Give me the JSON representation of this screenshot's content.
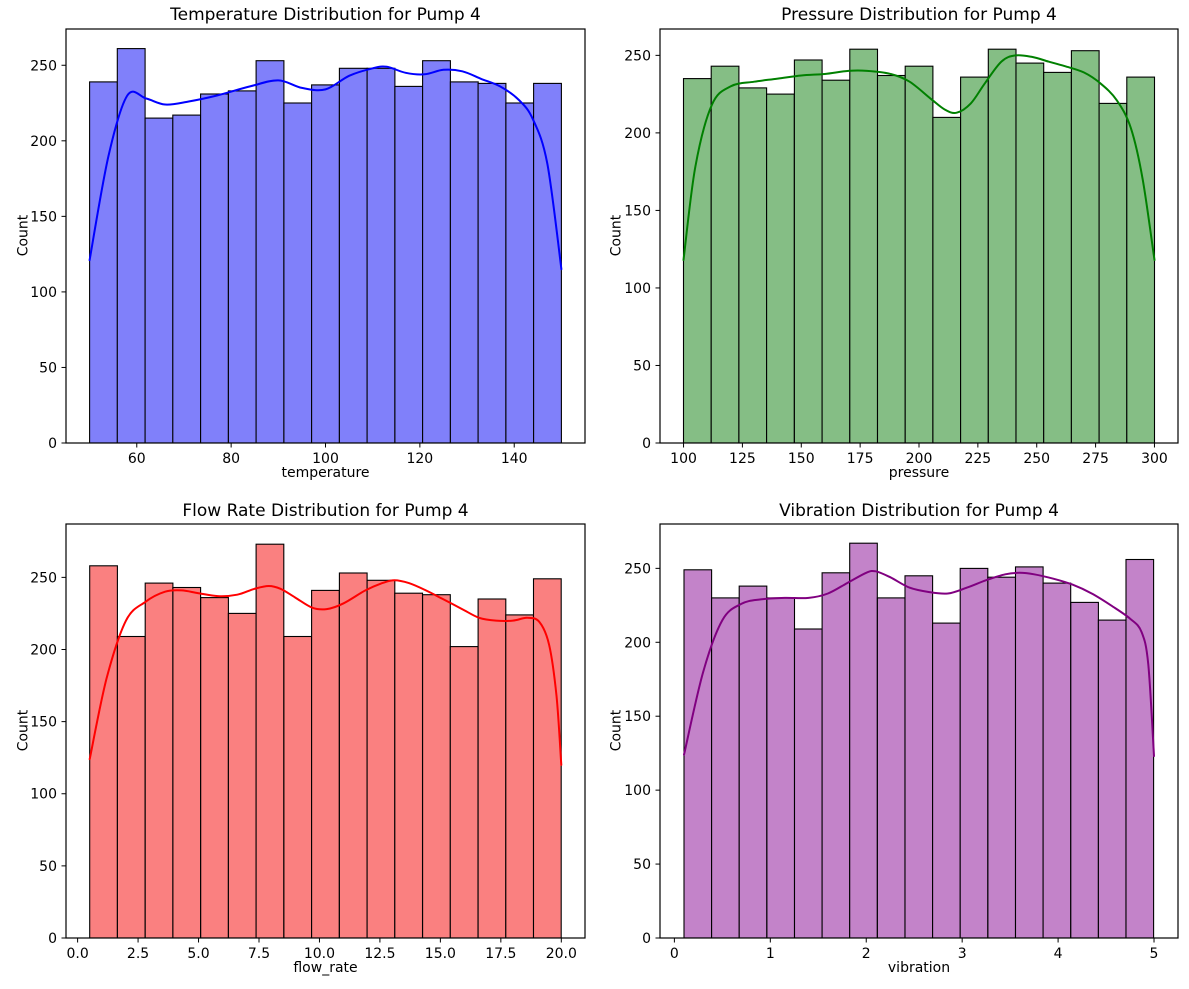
{
  "figure": {
    "background": "#ffffff",
    "text_color": "#000000",
    "axes_edge_color": "#000000"
  },
  "chart_data": [
    {
      "id": "temperature",
      "type": "bar",
      "subtype": "histogram_with_kde",
      "title": "Temperature Distribution for Pump 4",
      "xlabel": "temperature",
      "ylabel": "Count",
      "bar_color": "#8080fa",
      "bar_edge_color": "#000000",
      "kde_color": "#0000ff",
      "bin_start": 50.0,
      "bin_width": 5.882,
      "values": [
        239,
        261,
        215,
        217,
        231,
        233,
        253,
        225,
        237,
        248,
        248,
        236,
        253,
        239,
        238,
        225,
        238
      ],
      "xlim": [
        45,
        155
      ],
      "ylim": [
        0,
        274
      ],
      "grid": false,
      "xticks": {
        "values": [
          60,
          80,
          100,
          120,
          140
        ],
        "labels": [
          "60",
          "80",
          "100",
          "120",
          "140"
        ]
      },
      "yticks": {
        "values": [
          0,
          50,
          100,
          150,
          200,
          250
        ],
        "labels": [
          "0",
          "50",
          "100",
          "150",
          "200",
          "250"
        ]
      },
      "kde": [
        [
          50,
          121
        ],
        [
          54,
          190
        ],
        [
          58,
          230
        ],
        [
          62,
          228
        ],
        [
          66,
          224
        ],
        [
          71,
          226
        ],
        [
          77,
          230
        ],
        [
          84,
          236
        ],
        [
          90,
          240
        ],
        [
          95,
          235
        ],
        [
          100,
          234
        ],
        [
          105,
          243
        ],
        [
          110,
          248
        ],
        [
          113,
          249
        ],
        [
          117,
          245
        ],
        [
          121,
          244
        ],
        [
          125,
          247
        ],
        [
          129,
          246
        ],
        [
          133,
          241
        ],
        [
          137,
          236
        ],
        [
          141,
          227
        ],
        [
          144,
          214
        ],
        [
          147,
          185
        ],
        [
          150,
          115
        ]
      ]
    },
    {
      "id": "pressure",
      "type": "bar",
      "subtype": "histogram_with_kde",
      "title": "Pressure Distribution for Pump 4",
      "xlabel": "pressure",
      "ylabel": "Count",
      "bar_color": "#85be85",
      "bar_edge_color": "#000000",
      "kde_color": "#008000",
      "bin_start": 100.0,
      "bin_width": 11.765,
      "values": [
        235,
        243,
        229,
        225,
        247,
        234,
        254,
        237,
        243,
        210,
        236,
        254,
        245,
        239,
        253,
        219,
        236
      ],
      "xlim": [
        90,
        310
      ],
      "ylim": [
        0,
        267
      ],
      "grid": false,
      "xticks": {
        "values": [
          100,
          125,
          150,
          175,
          200,
          225,
          250,
          275,
          300
        ],
        "labels": [
          "100",
          "125",
          "150",
          "175",
          "200",
          "225",
          "250",
          "275",
          "300"
        ]
      },
      "yticks": {
        "values": [
          0,
          50,
          100,
          150,
          200,
          250
        ],
        "labels": [
          "0",
          "50",
          "100",
          "150",
          "200",
          "250"
        ]
      },
      "kde": [
        [
          100,
          118
        ],
        [
          105,
          178
        ],
        [
          112,
          218
        ],
        [
          120,
          230
        ],
        [
          130,
          233
        ],
        [
          140,
          235
        ],
        [
          150,
          237
        ],
        [
          160,
          238
        ],
        [
          170,
          240
        ],
        [
          178,
          240
        ],
        [
          188,
          238
        ],
        [
          196,
          233
        ],
        [
          205,
          222
        ],
        [
          211,
          215
        ],
        [
          216,
          213
        ],
        [
          222,
          219
        ],
        [
          228,
          232
        ],
        [
          235,
          246
        ],
        [
          241,
          250
        ],
        [
          248,
          249
        ],
        [
          255,
          246
        ],
        [
          262,
          243
        ],
        [
          270,
          239
        ],
        [
          277,
          232
        ],
        [
          284,
          221
        ],
        [
          290,
          203
        ],
        [
          295,
          170
        ],
        [
          300,
          118
        ]
      ]
    },
    {
      "id": "flow_rate",
      "type": "bar",
      "subtype": "histogram_with_kde",
      "title": "Flow Rate Distribution for Pump 4",
      "xlabel": "flow_rate",
      "ylabel": "Count",
      "bar_color": "#fa8080",
      "bar_edge_color": "#000000",
      "kde_color": "#ff0000",
      "bin_start": 0.5,
      "bin_width": 1.147,
      "values": [
        258,
        209,
        246,
        243,
        236,
        225,
        273,
        209,
        241,
        253,
        248,
        239,
        238,
        202,
        235,
        224,
        249
      ],
      "xlim": [
        -0.48,
        20.98
      ],
      "ylim": [
        0,
        287
      ],
      "grid": false,
      "xticks": {
        "values": [
          0,
          2.5,
          5,
          7.5,
          10,
          12.5,
          15,
          17.5,
          20
        ],
        "labels": [
          "0.0",
          "2.5",
          "5.0",
          "7.5",
          "10.0",
          "12.5",
          "15.0",
          "17.5",
          "20.0"
        ]
      },
      "yticks": {
        "values": [
          0,
          50,
          100,
          150,
          200,
          250
        ],
        "labels": [
          "0",
          "50",
          "100",
          "150",
          "200",
          "250"
        ]
      },
      "kde": [
        [
          0.5,
          124
        ],
        [
          1.2,
          180
        ],
        [
          2,
          220
        ],
        [
          2.8,
          233
        ],
        [
          3.6,
          240
        ],
        [
          4.3,
          241
        ],
        [
          5,
          239
        ],
        [
          5.8,
          237
        ],
        [
          6.6,
          238
        ],
        [
          7.3,
          242
        ],
        [
          7.9,
          244
        ],
        [
          8.4,
          242
        ],
        [
          9,
          236
        ],
        [
          9.7,
          229
        ],
        [
          10.3,
          228
        ],
        [
          11,
          232
        ],
        [
          11.9,
          241
        ],
        [
          12.6,
          246
        ],
        [
          13.1,
          248
        ],
        [
          13.7,
          246
        ],
        [
          14.4,
          241
        ],
        [
          15.1,
          235
        ],
        [
          15.9,
          228
        ],
        [
          16.6,
          222
        ],
        [
          17.3,
          220
        ],
        [
          18,
          220
        ],
        [
          18.6,
          222
        ],
        [
          19.1,
          219
        ],
        [
          19.5,
          203
        ],
        [
          19.8,
          168
        ],
        [
          20,
          120
        ]
      ]
    },
    {
      "id": "vibration",
      "type": "bar",
      "subtype": "histogram_with_kde",
      "title": "Vibration Distribution for Pump 4",
      "xlabel": "vibration",
      "ylabel": "Count",
      "bar_color": "#c383c9",
      "bar_edge_color": "#000000",
      "kde_color": "#800080",
      "bin_start": 0.1,
      "bin_width": 0.288,
      "values": [
        249,
        230,
        238,
        230,
        209,
        247,
        267,
        230,
        245,
        213,
        250,
        244,
        251,
        240,
        227,
        215,
        256
      ],
      "xlim": [
        -0.15,
        5.25
      ],
      "ylim": [
        0,
        280
      ],
      "grid": false,
      "xticks": {
        "values": [
          0,
          1,
          2,
          3,
          4,
          5
        ],
        "labels": [
          "0",
          "1",
          "2",
          "3",
          "4",
          "5"
        ]
      },
      "yticks": {
        "values": [
          0,
          50,
          100,
          150,
          200,
          250
        ],
        "labels": [
          "0",
          "50",
          "100",
          "150",
          "200",
          "250"
        ]
      },
      "kde": [
        [
          0.1,
          124
        ],
        [
          0.3,
          180
        ],
        [
          0.5,
          215
        ],
        [
          0.7,
          226
        ],
        [
          0.9,
          229
        ],
        [
          1.15,
          230
        ],
        [
          1.4,
          230
        ],
        [
          1.6,
          233
        ],
        [
          1.8,
          240
        ],
        [
          2,
          247
        ],
        [
          2.1,
          248
        ],
        [
          2.25,
          244
        ],
        [
          2.45,
          237
        ],
        [
          2.65,
          234
        ],
        [
          2.85,
          233
        ],
        [
          3.05,
          237
        ],
        [
          3.25,
          242
        ],
        [
          3.45,
          246
        ],
        [
          3.6,
          247
        ],
        [
          3.75,
          246
        ],
        [
          3.95,
          243
        ],
        [
          4.15,
          239
        ],
        [
          4.35,
          233
        ],
        [
          4.55,
          225
        ],
        [
          4.75,
          216
        ],
        [
          4.87,
          207
        ],
        [
          4.94,
          185
        ],
        [
          5,
          123
        ]
      ]
    }
  ]
}
